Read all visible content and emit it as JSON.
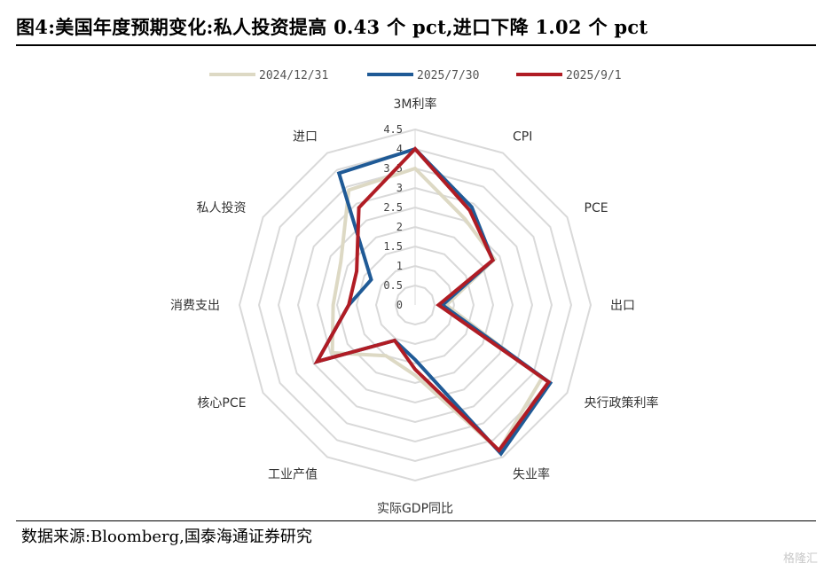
{
  "title": "图4:美国年度预期变化:私人投资提高 0.43 个 pct,进口下降 1.02 个 pct",
  "source": "数据来源:Bloomberg,国泰海通证券研究",
  "watermark": "格隆汇",
  "colors": {
    "s2024": "#ddd9c4",
    "s2025_7": "#1f5a96",
    "s2025_9": "#b01c24",
    "grid": "#d9d9d9"
  },
  "chart_data": {
    "type": "radar",
    "axes": [
      "3M利率",
      "CPI",
      "PCE",
      "出口",
      "央行政策利率",
      "失业率",
      "实际GDP同比",
      "工业产值",
      "核心PCE",
      "消费支出",
      "私人投资",
      "进口"
    ],
    "rlim": [
      0,
      4.5
    ],
    "ticks": [
      "0",
      "0.5",
      "1",
      "1.5",
      "2",
      "2.5",
      "3",
      "3.5",
      "4",
      "4.5"
    ],
    "grid": true,
    "legend_position": "top",
    "series": [
      {
        "name": "2024/12/31",
        "values": [
          3.5,
          2.55,
          2.35,
          0.8,
          3.75,
          4.3,
          1.8,
          1.5,
          2.45,
          2.1,
          2.2,
          3.4
        ]
      },
      {
        "name": "2025/7/30",
        "values": [
          4.0,
          2.9,
          2.3,
          0.7,
          4.0,
          4.4,
          1.4,
          1.05,
          2.9,
          1.7,
          1.3,
          3.9
        ]
      },
      {
        "name": "2025/9/1",
        "values": [
          4.0,
          2.8,
          2.3,
          0.6,
          3.95,
          4.3,
          1.65,
          1.05,
          2.9,
          1.7,
          1.73,
          2.88
        ]
      }
    ]
  }
}
